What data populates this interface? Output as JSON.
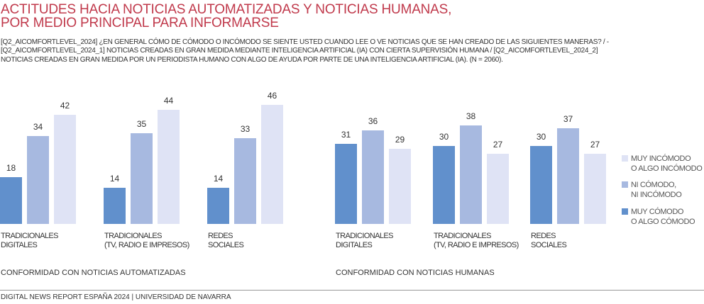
{
  "title": "ACTITUDES HACIA NOTICIAS AUTOMATIZADAS Y NOTICIAS HUMANAS,\nPOR MEDIO PRINCIPAL PARA INFORMARSE",
  "subtitle": "[Q2_AICOMFORTLEVEL_2024] ¿EN GENERAL CÓMO DE CÓMODO O INCÓMODO SE SIENTE USTED CUANDO LEE O VE NOTICIAS QUE SE HAN CREADO DE LAS SIGUIENTES MANERAS? / -[Q2_AICOMFORTLEVEL_2024_1] NOTICIAS CREADAS EN GRAN MEDIDA MEDIANTE INTELIGENCIA ARTIFICIAL (IA) CON CIERTA SUPERVISIÓN HUMANA / [Q2_AICOMFORTLEVEL_2024_2] NOTICIAS CREADAS EN GRAN MEDIDA POR UN PERIODISTA HUMANO CON ALGO DE AYUDA POR PARTE DE UNA INTELIGENCIA ARTIFICIAL (IA). (N = 2060).",
  "footer": "DIGITAL NEWS REPORT ESPAÑA 2024 | UNIVERSIDAD DE NAVARRA",
  "chart_data": {
    "type": "bar",
    "panels": [
      {
        "label": "CONFORMIDAD CON NOTICIAS AUTOMATIZADAS",
        "categories": [
          "TRADICIONALES\nDIGITALES",
          "TRADICIONALES\n(TV, RADIO E IMPRESOS)",
          "REDES\nSOCIALES"
        ],
        "series": [
          {
            "name": "MUY CÓMODO\nO ALGO CÓMODO",
            "values": [
              18,
              14,
              14
            ]
          },
          {
            "name": "NI CÓMODO,\nNI INCÓMODO",
            "values": [
              34,
              35,
              33
            ]
          },
          {
            "name": "MUY INCÓMODO\nO ALGO INCÓMODO",
            "values": [
              42,
              44,
              46
            ]
          }
        ]
      },
      {
        "label": "CONFORMIDAD CON NOTICIAS HUMANAS",
        "categories": [
          "TRADICIONALES\nDIGITALES",
          "TRADICIONALES\n(TV, RADIO E IMPRESOS)",
          "REDES\nSOCIALES"
        ],
        "series": [
          {
            "name": "MUY CÓMODO\nO ALGO CÓMODO",
            "values": [
              31,
              30,
              30
            ]
          },
          {
            "name": "NI CÓMODO,\nNI INCÓMODO",
            "values": [
              36,
              38,
              37
            ]
          },
          {
            "name": "MUY INCÓMODO\nO ALGO INCÓMODO",
            "values": [
              29,
              27,
              27
            ]
          }
        ]
      }
    ],
    "legend": [
      "MUY INCÓMODO\nO ALGO INCÓMODO",
      "NI CÓMODO,\nNI INCÓMODO",
      "MUY CÓMODO\nO ALGO CÓMODO"
    ],
    "legend_position": "right",
    "colors": {
      "MUY CÓMODO\nO ALGO CÓMODO": "#6190cc",
      "NI CÓMODO,\nNI INCÓMODO": "#a7b9e0",
      "MUY INCÓMODO\nO ALGO INCÓMODO": "#dfe3f5"
    },
    "title_color": "#c0394b"
  }
}
